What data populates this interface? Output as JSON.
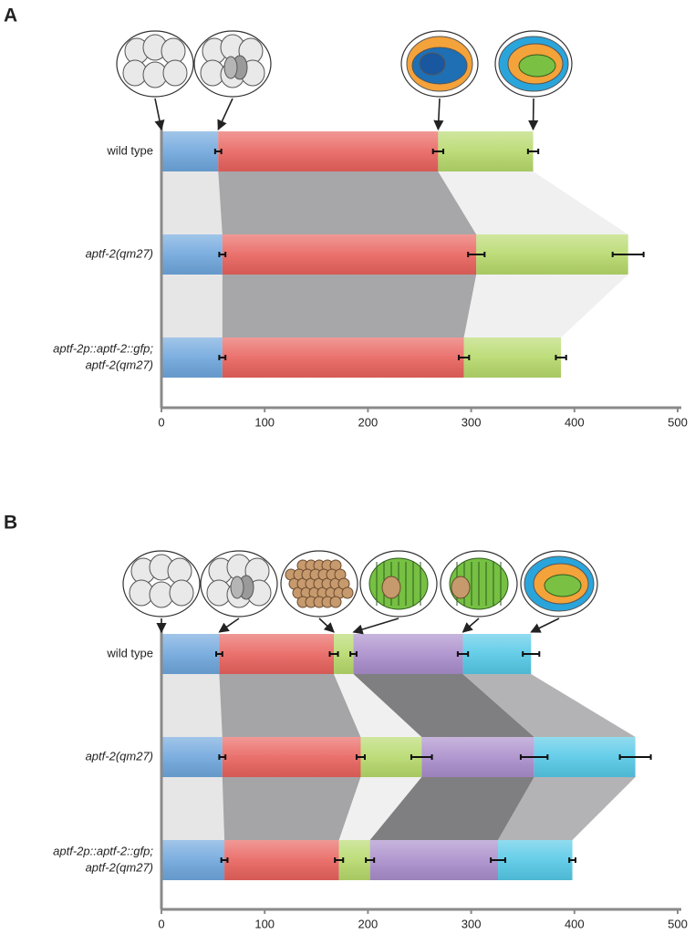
{
  "chart_data": [
    {
      "type": "bar",
      "label": "A",
      "categories": [
        "wild type",
        "aptf-2(qm27)",
        [
          "aptf-2p::aptf-2::gfp;",
          "aptf-2(qm27)"
        ]
      ],
      "series": [
        {
          "color": "#6ea6dc",
          "values": [
            55,
            59,
            59
          ],
          "errors": [
            3,
            3,
            3
          ]
        },
        {
          "color": "#e8625d",
          "values": [
            213,
            246,
            234
          ],
          "errors": [
            5,
            8,
            5
          ]
        },
        {
          "color": "#b6d96b",
          "values": [
            92,
            147,
            94
          ],
          "errors": [
            5,
            15,
            5
          ]
        }
      ],
      "xlim": [
        0,
        500
      ],
      "xticks": [
        0,
        100,
        200,
        300,
        400,
        500
      ]
    },
    {
      "type": "bar",
      "label": "B",
      "categories": [
        "wild type",
        "aptf-2(qm27)",
        [
          "aptf-2p::aptf-2::gfp;",
          "aptf-2(qm27)"
        ]
      ],
      "series": [
        {
          "color": "#6ea6dc",
          "values": [
            56,
            59,
            61
          ],
          "errors": [
            3,
            3,
            3
          ]
        },
        {
          "color": "#e8625d",
          "values": [
            111,
            134,
            111
          ],
          "errors": [
            4,
            4,
            4
          ]
        },
        {
          "color": "#b6d96b",
          "values": [
            19,
            59,
            30
          ],
          "errors": [
            3,
            10,
            4
          ]
        },
        {
          "color": "#a98dcb",
          "values": [
            106,
            109,
            124
          ],
          "errors": [
            5,
            13,
            7
          ]
        },
        {
          "color": "#55c8e6",
          "values": [
            66,
            98,
            72
          ],
          "errors": [
            8,
            15,
            3
          ]
        }
      ],
      "xlim": [
        0,
        500
      ],
      "xticks": [
        0,
        100,
        200,
        300,
        400,
        500
      ]
    }
  ]
}
